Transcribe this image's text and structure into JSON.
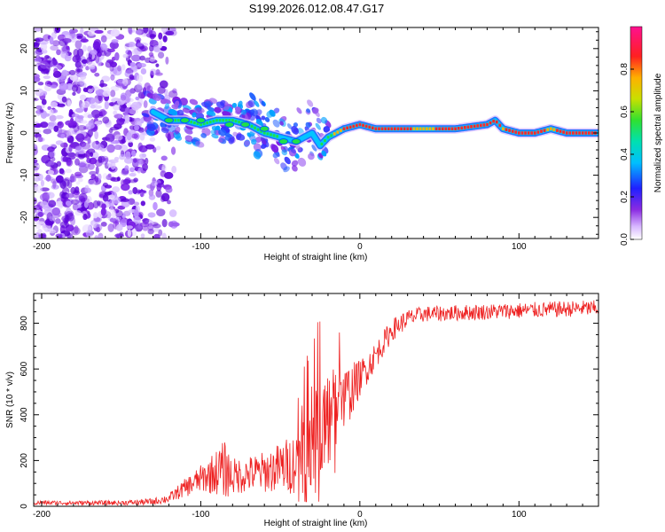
{
  "title": "S199.2026.012.08.47.G17",
  "colors": {
    "snr_line": "#ee2222",
    "frame": "#000000",
    "blob": "#7a1ee6",
    "ridge_core": "#ff2a2a",
    "ridge_mid": "#1fe04a",
    "ridge_outer": "#1a6cff"
  },
  "chart_data": [
    {
      "type": "heatmap",
      "title": "S199.2026.012.08.47.G17",
      "xlabel": "Height of straight line (km)",
      "ylabel": "Frequency (Hz)",
      "xlim": [
        -205,
        150
      ],
      "ylim": [
        -25,
        25
      ],
      "xticks": [
        -200,
        -100,
        0,
        100
      ],
      "yticks": [
        -20,
        -10,
        0,
        10,
        20
      ],
      "colorbar": {
        "label": "Normalized spectral amplitude",
        "range": [
          0.0,
          1.0
        ],
        "ticks": [
          "0.0",
          "0.2",
          "0.4",
          "0.6",
          "0.8"
        ],
        "tick_values": [
          0.0,
          0.2,
          0.4,
          0.6,
          0.8
        ]
      },
      "ridge": {
        "x": [
          -130,
          -120,
          -110,
          -100,
          -90,
          -80,
          -70,
          -60,
          -50,
          -40,
          -30,
          -25,
          -20,
          -10,
          0,
          10,
          20,
          40,
          60,
          80,
          85,
          90,
          100,
          110,
          120,
          130,
          140,
          150
        ],
        "frequency": [
          5,
          3,
          3,
          2,
          3,
          3,
          2,
          0,
          -1,
          -2,
          0,
          -3,
          -1,
          1,
          2,
          1,
          1,
          1,
          1,
          2,
          3,
          1,
          0,
          0,
          1,
          0,
          0,
          0
        ],
        "amplitude": [
          0.35,
          0.45,
          0.6,
          0.5,
          0.55,
          0.5,
          0.55,
          0.5,
          0.45,
          0.4,
          0.35,
          0.45,
          0.55,
          0.85,
          0.9,
          0.9,
          0.85,
          0.8,
          0.85,
          0.9,
          0.85,
          0.8,
          0.9,
          0.85,
          0.8,
          0.85,
          0.9,
          0.9
        ]
      },
      "noise_region_x": [
        -205,
        -125
      ],
      "noise_amplitude": 0.15
    },
    {
      "type": "line",
      "xlabel": "Height of straight line (km)",
      "ylabel": "SNR (10 * v/v)",
      "xlim": [
        -205,
        150
      ],
      "ylim": [
        0,
        930
      ],
      "xticks": [
        -200,
        -100,
        0,
        100
      ],
      "yticks": [
        0,
        200,
        400,
        600,
        800
      ],
      "series": [
        {
          "name": "SNR",
          "envelope_x": [
            -205,
            -150,
            -130,
            -120,
            -110,
            -100,
            -90,
            -85,
            -80,
            -70,
            -60,
            -50,
            -40,
            -35,
            -30,
            -25,
            -20,
            -15,
            -10,
            -5,
            0,
            10,
            20,
            30,
            40,
            60,
            80,
            100,
            120,
            140,
            150
          ],
          "mean": [
            15,
            15,
            20,
            35,
            80,
            120,
            150,
            160,
            130,
            140,
            150,
            170,
            190,
            250,
            300,
            330,
            380,
            430,
            470,
            510,
            560,
            660,
            770,
            820,
            840,
            845,
            850,
            855,
            860,
            865,
            865
          ],
          "spread": [
            10,
            10,
            15,
            20,
            40,
            60,
            100,
            130,
            80,
            80,
            90,
            110,
            140,
            200,
            280,
            250,
            220,
            180,
            140,
            120,
            80,
            60,
            50,
            40,
            35,
            35,
            35,
            35,
            35,
            35,
            35
          ]
        }
      ]
    }
  ]
}
